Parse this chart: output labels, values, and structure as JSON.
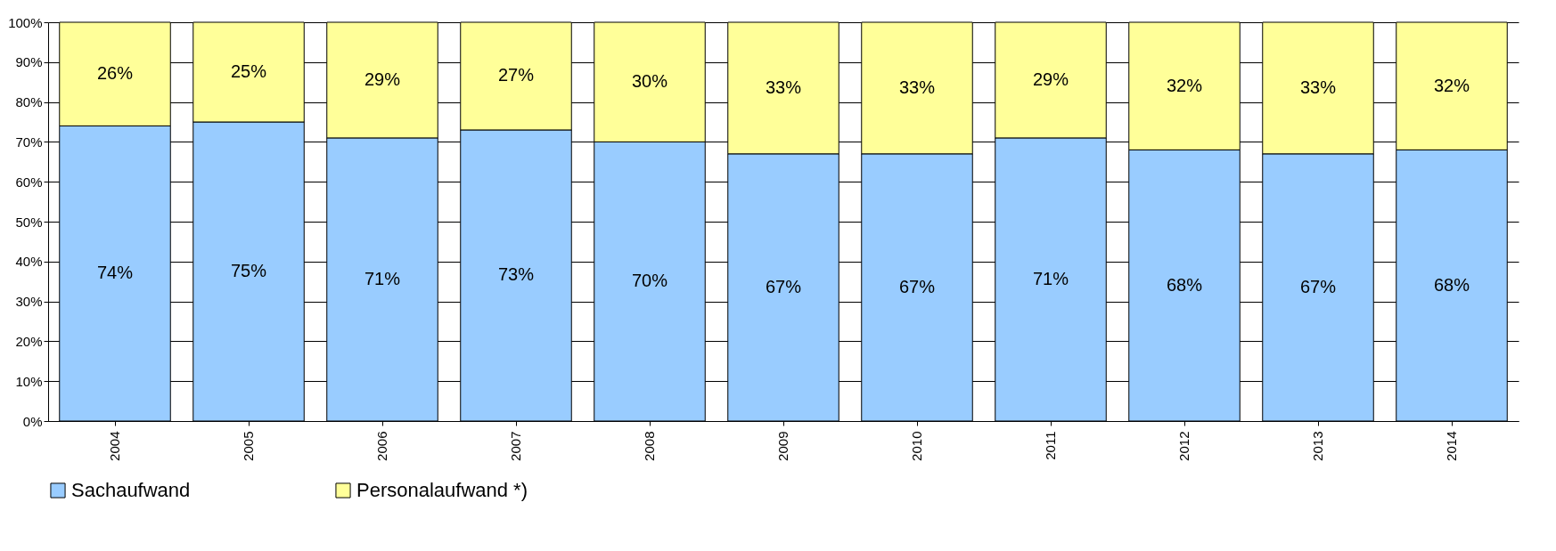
{
  "chart_data": {
    "type": "bar",
    "stacked": true,
    "categories": [
      "2004",
      "2005",
      "2006",
      "2007",
      "2008",
      "2009",
      "2010",
      "2011",
      "2012",
      "2013",
      "2014"
    ],
    "series": [
      {
        "name": "Sachaufwand",
        "color": "#99ccff",
        "values": [
          74,
          75,
          71,
          73,
          70,
          67,
          67,
          71,
          68,
          67,
          68
        ],
        "value_labels": [
          "74%",
          "75%",
          "71%",
          "73%",
          "70%",
          "67%",
          "67%",
          "71%",
          "68%",
          "67%",
          "68%"
        ]
      },
      {
        "name": "Personalaufwand *)",
        "color": "#ffff99",
        "values": [
          26,
          25,
          29,
          27,
          30,
          33,
          33,
          29,
          32,
          33,
          32
        ],
        "value_labels": [
          "26%",
          "25%",
          "29%",
          "27%",
          "30%",
          "33%",
          "33%",
          "29%",
          "32%",
          "33%",
          "32%"
        ]
      }
    ],
    "ylim": [
      0,
      100
    ],
    "yticks": [
      {
        "value": 0,
        "label": "0%"
      },
      {
        "value": 10,
        "label": "10%"
      },
      {
        "value": 20,
        "label": "20%"
      },
      {
        "value": 30,
        "label": "30%"
      },
      {
        "value": 40,
        "label": "40%"
      },
      {
        "value": 50,
        "label": "50%"
      },
      {
        "value": 60,
        "label": "60%"
      },
      {
        "value": 70,
        "label": "70%"
      },
      {
        "value": 80,
        "label": "80%"
      },
      {
        "value": 90,
        "label": "90%"
      },
      {
        "value": 100,
        "label": "100%"
      }
    ],
    "grid": "y",
    "legend": "bottom"
  }
}
